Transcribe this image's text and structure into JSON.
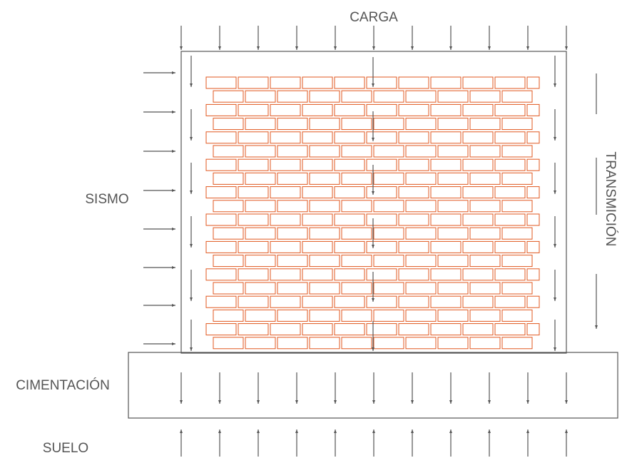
{
  "labels": {
    "load": "CARGA",
    "seismic": "SISMO",
    "transmission": "TRANSMICIÓN",
    "foundation": "CIMENTACIÓN",
    "soil": "SUELO"
  },
  "colors": {
    "line": "#555555",
    "brick": "#e0571f",
    "background": "#ffffff"
  },
  "icons": {
    "arrow_down": "arrow-down-icon",
    "arrow_up": "arrow-up-icon",
    "arrow_right": "arrow-right-icon"
  }
}
